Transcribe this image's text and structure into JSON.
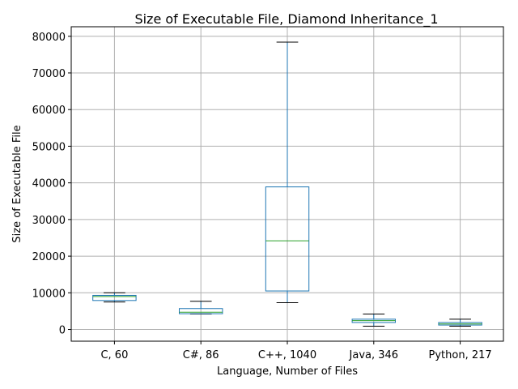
{
  "chart_data": {
    "type": "box",
    "title": "Size of Executable File, Diamond Inheritance_1",
    "xlabel": "Language, Number of Files",
    "ylabel": "Size of Executable File",
    "ylim": [
      -3200,
      82600
    ],
    "yticks": [
      0,
      10000,
      20000,
      30000,
      40000,
      50000,
      60000,
      70000,
      80000
    ],
    "grid": true,
    "categories": [
      "C, 60",
      "C#, 86",
      "C++, 1040",
      "Java, 346",
      "Python, 217"
    ],
    "boxes": [
      {
        "whisker_low": 7500,
        "q1": 7900,
        "median": 9000,
        "q3": 9300,
        "whisker_high": 10000
      },
      {
        "whisker_low": 4200,
        "q1": 4300,
        "median": 4700,
        "q3": 5700,
        "whisker_high": 7700
      },
      {
        "whisker_low": 7300,
        "q1": 10500,
        "median": 24200,
        "q3": 38900,
        "whisker_high": 78400
      },
      {
        "whisker_low": 900,
        "q1": 1900,
        "median": 2400,
        "q3": 2800,
        "whisker_high": 4200
      },
      {
        "whisker_low": 900,
        "q1": 1200,
        "median": 1500,
        "q3": 1900,
        "whisker_high": 2800
      }
    ]
  }
}
